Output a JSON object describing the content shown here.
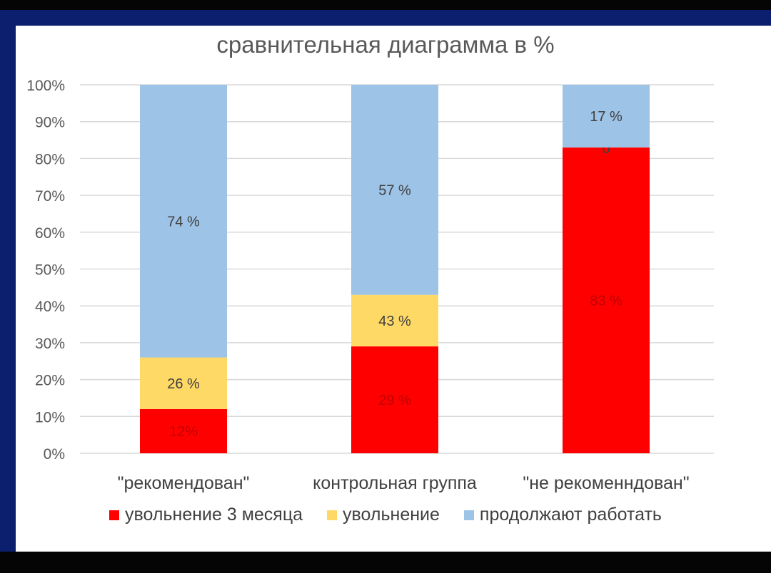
{
  "chart_data": {
    "type": "bar",
    "stacked": true,
    "title": "сравнительная диаграмма в %",
    "categories": [
      "\"рекомендован\"",
      "контрольная группа",
      "\"не рекоменндован\""
    ],
    "series": [
      {
        "name": "увольнение 3 месяца",
        "color": "#ff0000",
        "values": [
          12,
          29,
          83
        ],
        "labels": [
          "12%",
          "29 %",
          "83 %"
        ],
        "label_color": "#c00000"
      },
      {
        "name": "увольнение",
        "color": "#ffd966",
        "values": [
          14,
          14,
          0
        ],
        "labels": [
          "26 %",
          "43 %",
          "0"
        ],
        "label_color": "#404040"
      },
      {
        "name": "продолжают работать",
        "color": "#9dc3e6",
        "values": [
          74,
          57,
          17
        ],
        "labels": [
          "74 %",
          "57 %",
          "17 %"
        ],
        "label_color": "#404040"
      }
    ],
    "ylim": [
      0,
      100
    ],
    "yticks": [
      "0%",
      "10%",
      "20%",
      "30%",
      "40%",
      "50%",
      "60%",
      "70%",
      "80%",
      "90%",
      "100%"
    ],
    "grid": true,
    "legend_position": "bottom"
  }
}
